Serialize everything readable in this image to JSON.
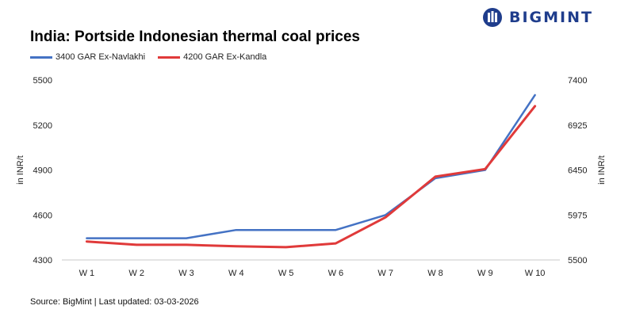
{
  "brand": {
    "name": "BIGMINT",
    "color": "#1f3d8c"
  },
  "chart_data": {
    "type": "line",
    "title": "India: Portside Indonesian thermal coal prices",
    "categories": [
      "W 1",
      "W 2",
      "W 3",
      "W 4",
      "W 5",
      "W 6",
      "W 7",
      "W 8",
      "W 9",
      "W 10"
    ],
    "series": [
      {
        "name": "3400 GAR Ex-Navlakhi",
        "axis": "left",
        "color": "#4472c4",
        "values": [
          4445,
          4445,
          4445,
          4500,
          4500,
          4500,
          4600,
          4845,
          4900,
          5400
        ]
      },
      {
        "name": "4200 GAR Ex-Kandla",
        "axis": "right",
        "color": "#e03a3a",
        "values": [
          5695,
          5660,
          5660,
          5645,
          5635,
          5675,
          5950,
          6380,
          6460,
          7125
        ]
      }
    ],
    "y_left": {
      "label": "in INR/t",
      "range": [
        4300,
        5500
      ],
      "ticks": [
        4300,
        4600,
        4900,
        5200,
        5500
      ]
    },
    "y_right": {
      "label": "in INR/t",
      "range": [
        5500,
        7400
      ],
      "ticks": [
        5500,
        5975,
        6450,
        6925,
        7400
      ]
    },
    "grid": false,
    "legend_position": "top-left"
  },
  "footer": {
    "source": "Source: BigMint | Last updated: 03-03-2026"
  }
}
